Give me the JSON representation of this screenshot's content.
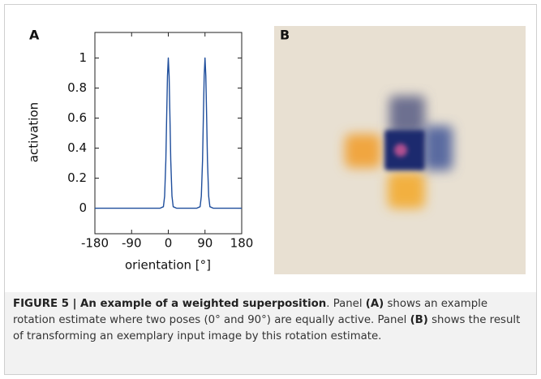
{
  "panel_labels": [
    "A",
    "B"
  ],
  "chart_data": {
    "type": "line",
    "xlabel": "orientation [°]",
    "ylabel": "activation",
    "x": [
      -180,
      -20,
      -12,
      -9,
      -6,
      -4,
      -2,
      0,
      2,
      4,
      6,
      9,
      12,
      20,
      70,
      78,
      81,
      84,
      86,
      88,
      90,
      92,
      94,
      96,
      99,
      102,
      110,
      180
    ],
    "values": [
      0,
      0,
      0.01,
      0.08,
      0.32,
      0.61,
      0.88,
      1,
      0.88,
      0.61,
      0.32,
      0.08,
      0.01,
      0,
      0,
      0.01,
      0.08,
      0.32,
      0.61,
      0.88,
      1,
      0.88,
      0.61,
      0.32,
      0.08,
      0.01,
      0,
      0
    ],
    "color": "#1f4e9c",
    "xlim": [
      -180,
      180
    ],
    "xticks": [
      -180,
      -90,
      0,
      90,
      180
    ],
    "ylim": [
      -0.17,
      1.17
    ],
    "yticks": [
      0,
      0.2,
      0.4,
      0.6,
      0.8,
      1
    ]
  },
  "caption": {
    "title": "FIGURE 5 | An example of a weighted superposition",
    "text_1": ". Panel ",
    "ref_a": "(A)",
    "text_2": " shows an example rotation estimate where two poses (0° and 90°) are equally active. Panel ",
    "ref_b": "(B)",
    "text_3": " shows the result of transforming an exemplary input image by this rotation estimate."
  }
}
